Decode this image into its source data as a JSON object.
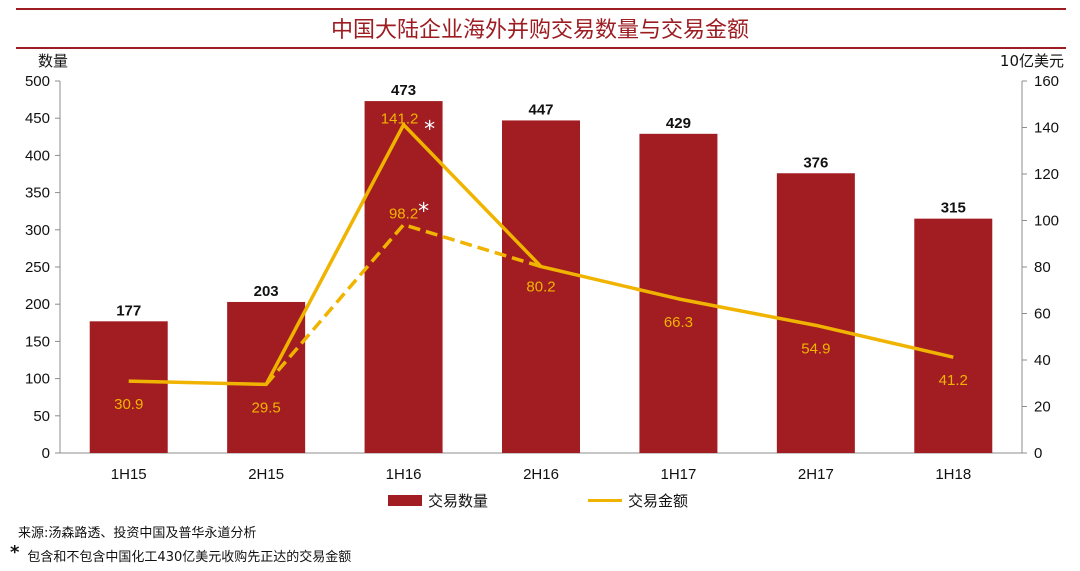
{
  "title": "中国大陆企业海外并购交易数量与交易金额",
  "chart_data": {
    "type": "bar",
    "categories": [
      "1H15",
      "2H15",
      "1H16",
      "2H16",
      "1H17",
      "2H17",
      "1H18"
    ],
    "series": [
      {
        "name": "交易数量",
        "axis": "left",
        "kind": "bar",
        "color": "#a11d22",
        "values": [
          177,
          203,
          473,
          447,
          429,
          376,
          315
        ]
      },
      {
        "name": "交易金额",
        "axis": "right",
        "kind": "line",
        "color": "#f0b400",
        "values": [
          30.9,
          29.5,
          141.2,
          80.2,
          66.3,
          54.9,
          41.2
        ]
      },
      {
        "name": "交易金额（不包含中国化工收购先正达）",
        "axis": "right",
        "kind": "line-dashed",
        "color": "#f0b400",
        "values": [
          null,
          29.5,
          98.2,
          80.2,
          null,
          null,
          null
        ]
      }
    ],
    "line_labels": [
      "30.9",
      "29.5",
      "141.2",
      "80.2",
      "66.3",
      "54.9",
      "41.2"
    ],
    "dashed_label": "98.2",
    "star_marker": "*",
    "left_axis": {
      "label": "数量",
      "ylim": [
        0,
        500
      ],
      "ticks": [
        0,
        50,
        100,
        150,
        200,
        250,
        300,
        350,
        400,
        450,
        500
      ]
    },
    "right_axis": {
      "label": "10亿美元",
      "ylim": [
        0,
        160
      ],
      "ticks": [
        0,
        20,
        40,
        60,
        80,
        100,
        120,
        140,
        160
      ]
    },
    "legend": [
      "交易数量",
      "交易金额"
    ],
    "legend_position": "bottom"
  },
  "source": "来源:汤森路透、投资中国及普华永道分析",
  "footnote": {
    "mark": "*",
    "text": "包含和不包含中国化工430亿美元收购先正达的交易金额"
  },
  "colors": {
    "bar": "#a11d22",
    "line": "#f0b400",
    "title": "#9c1c22"
  }
}
